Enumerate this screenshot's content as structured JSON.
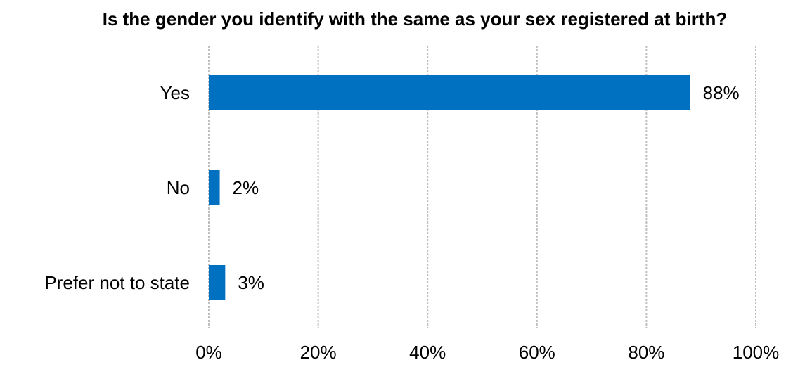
{
  "chart_data": {
    "type": "bar",
    "orientation": "horizontal",
    "title": "Is the gender you identify with the same as your sex registered at birth?",
    "categories": [
      "Yes",
      "No",
      "Prefer not to state"
    ],
    "values": [
      88,
      2,
      3
    ],
    "data_labels": [
      "88%",
      "2%",
      "3%"
    ],
    "xlim": [
      0,
      100
    ],
    "x_ticks": [
      0,
      20,
      40,
      60,
      80,
      100
    ],
    "x_tick_labels": [
      "0%",
      "20%",
      "40%",
      "60%",
      "80%",
      "100%"
    ],
    "xlabel": "",
    "ylabel": "",
    "grid": "vertical dashed",
    "legend": "none",
    "colors": {
      "bar": "#0070C0",
      "grid": "#BFBFBF",
      "text": "#000000"
    }
  }
}
